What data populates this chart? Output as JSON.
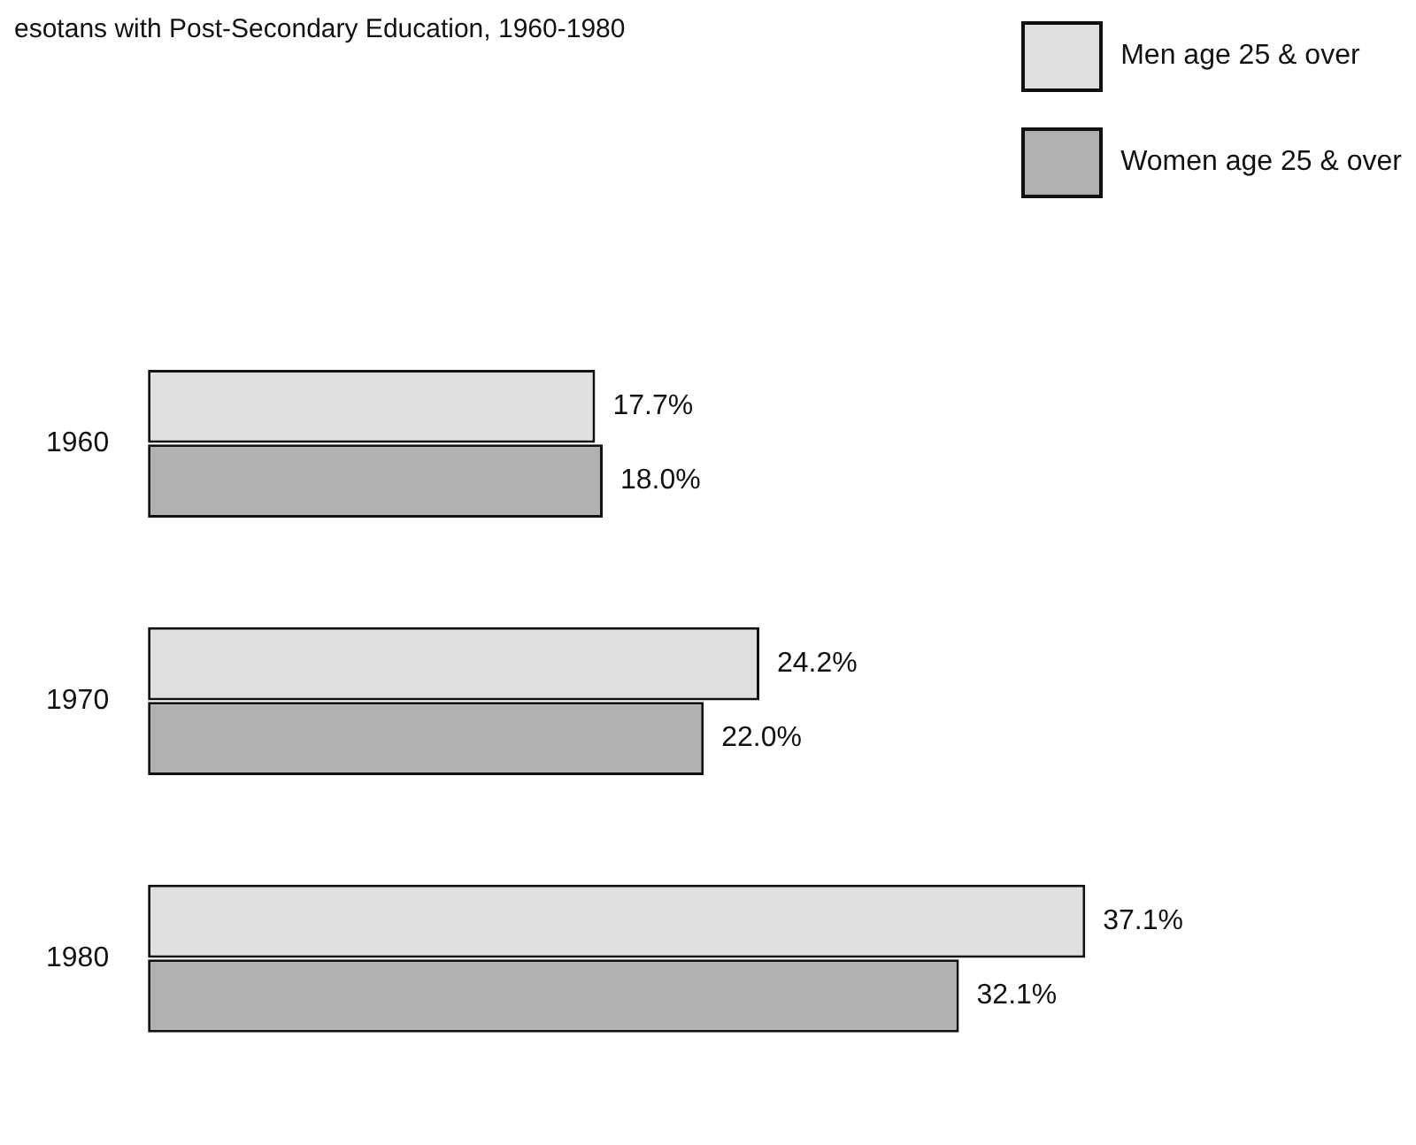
{
  "chart_data": {
    "type": "bar",
    "orientation": "horizontal",
    "title": "esotans with Post-Secondary Education, 1960-1980",
    "categories": [
      "1960",
      "1970",
      "1980"
    ],
    "series": [
      {
        "name": "Men age 25 & over",
        "color": "#e0e0e0",
        "values": [
          17.7,
          24.2,
          37.1
        ],
        "value_labels": [
          "17.7%",
          "24.2%",
          "37.1%"
        ]
      },
      {
        "name": "Women age 25 & over",
        "color": "#b0b0b0",
        "values": [
          18.0,
          22.0,
          32.1
        ],
        "value_labels": [
          "18.0%",
          "22.0%",
          "32.1%"
        ]
      }
    ],
    "legend": "top right"
  }
}
